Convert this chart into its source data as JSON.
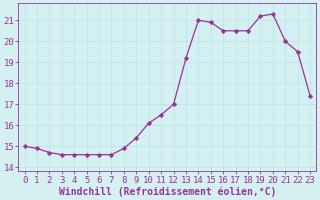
{
  "x": [
    0,
    1,
    2,
    3,
    4,
    5,
    6,
    7,
    8,
    9,
    10,
    11,
    12,
    13,
    14,
    15,
    16,
    17,
    18,
    19,
    20,
    21,
    22,
    23
  ],
  "y": [
    15.0,
    14.9,
    14.7,
    14.6,
    14.6,
    14.6,
    14.6,
    14.6,
    14.9,
    15.4,
    16.1,
    16.5,
    17.0,
    19.2,
    21.0,
    20.9,
    20.5,
    20.5,
    20.5,
    21.2,
    21.3,
    20.0,
    19.5,
    17.4
  ],
  "xlim": [
    -0.5,
    23.5
  ],
  "ylim": [
    13.8,
    21.8
  ],
  "yticks": [
    14,
    15,
    16,
    17,
    18,
    19,
    20,
    21
  ],
  "xticks": [
    0,
    1,
    2,
    3,
    4,
    5,
    6,
    7,
    8,
    9,
    10,
    11,
    12,
    13,
    14,
    15,
    16,
    17,
    18,
    19,
    20,
    21,
    22,
    23
  ],
  "xlabel": "Windchill (Refroidissement éolien,°C)",
  "line_color": "#993399",
  "marker_color": "#993399",
  "bg_color": "#d4f0f0",
  "grid_color": "#b8e4e4",
  "xlabel_fontsize": 7,
  "tick_fontsize": 6.5,
  "linewidth": 0.9,
  "markersize": 2.2
}
